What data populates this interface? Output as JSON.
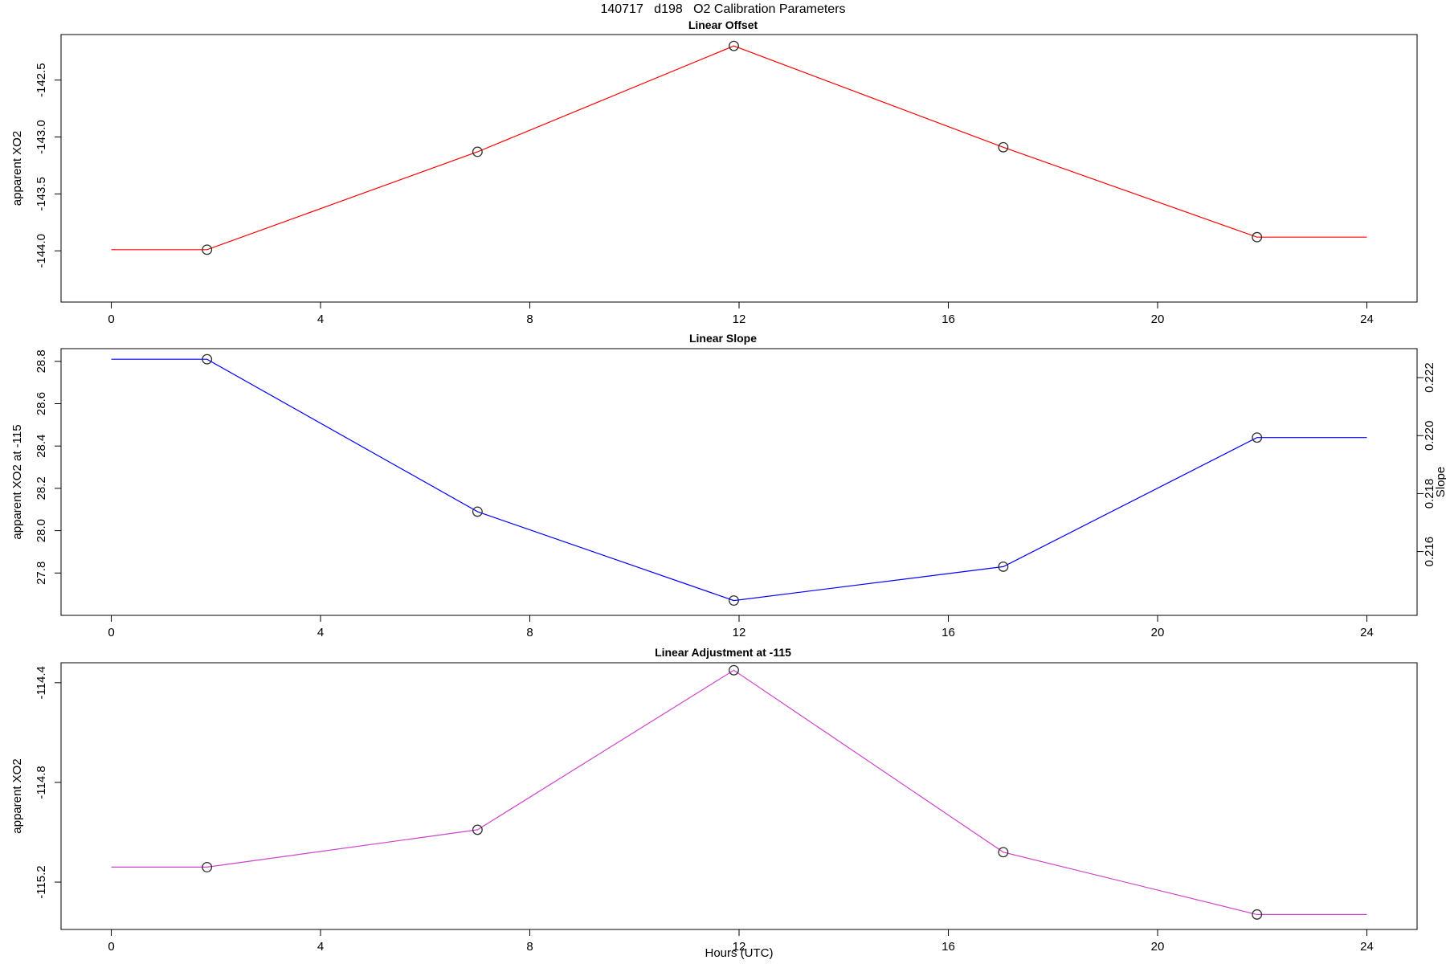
{
  "figure": {
    "main_title": "140717   d198   O2 Calibration Parameters",
    "xlabel": "Hours (UTC)",
    "background_color": "#ffffff",
    "text_color": "#000000"
  },
  "chart_data": [
    {
      "id": "linear-offset",
      "type": "line",
      "title": "Linear Offset",
      "ylabel": "apparent XO2",
      "color": "#FF0000",
      "marker": "open-circle",
      "marker_color": "#303030",
      "x": [
        1.83,
        7.0,
        11.9,
        17.05,
        21.9
      ],
      "y": [
        -143.99,
        -143.13,
        -142.2,
        -143.09,
        -143.88
      ],
      "line_extend_x": [
        0,
        24
      ],
      "xticks": {
        "values": [
          0,
          4,
          8,
          12,
          16,
          20,
          24
        ],
        "labels": [
          "0",
          "4",
          "8",
          "12",
          "16",
          "20",
          "24"
        ]
      },
      "yticks": {
        "values": [
          -142.5,
          -143.0,
          -143.5,
          -144.0
        ],
        "labels": [
          "-142.5",
          "-143.0",
          "-143.5",
          "-144.0"
        ]
      },
      "xlim": [
        -0.96,
        24.96
      ],
      "ylim": [
        -144.45,
        -142.1
      ],
      "grid": false,
      "legend": null
    },
    {
      "id": "linear-slope",
      "type": "line",
      "title": "Linear Slope",
      "ylabel": "apparent XO2 at -115",
      "ylabel_right": "Slope",
      "color": "#0000FF",
      "marker": "open-circle",
      "marker_color": "#303030",
      "x": [
        1.83,
        7.0,
        11.9,
        17.05,
        21.9
      ],
      "y": [
        28.81,
        28.09,
        27.67,
        27.83,
        28.44
      ],
      "line_extend_x": [
        0,
        24
      ],
      "xticks": {
        "values": [
          0,
          4,
          8,
          12,
          16,
          20,
          24
        ],
        "labels": [
          "0",
          "4",
          "8",
          "12",
          "16",
          "20",
          "24"
        ]
      },
      "yticks": {
        "values": [
          28.8,
          28.6,
          28.4,
          28.2,
          28.0,
          27.8
        ],
        "labels": [
          "28.8",
          "28.6",
          "28.4",
          "28.2",
          "28.0",
          "27.8"
        ]
      },
      "yticks_right": {
        "values": [
          0.222,
          0.22,
          0.218,
          0.216
        ],
        "labels": [
          "0.222",
          "0.220",
          "0.218",
          "0.216"
        ]
      },
      "xlim": [
        -0.96,
        24.96
      ],
      "ylim": [
        27.6,
        28.86
      ],
      "ylim_right": [
        0.2138,
        0.223
      ],
      "grid": false,
      "legend": null
    },
    {
      "id": "linear-adjustment",
      "type": "line",
      "title": "Linear Adjustment at -115",
      "ylabel": "apparent XO2",
      "color": "#CC44CC",
      "marker": "open-circle",
      "marker_color": "#303030",
      "x": [
        1.83,
        7.0,
        11.9,
        17.05,
        21.9
      ],
      "y": [
        -115.14,
        -114.99,
        -114.35,
        -115.08,
        -115.33
      ],
      "line_extend_x": [
        0,
        24
      ],
      "xticks": {
        "values": [
          0,
          4,
          8,
          12,
          16,
          20,
          24
        ],
        "labels": [
          "0",
          "4",
          "8",
          "12",
          "16",
          "20",
          "24"
        ]
      },
      "yticks": {
        "values": [
          -114.4,
          -114.8,
          -115.2
        ],
        "labels": [
          "-114.4",
          "-114.8",
          "-115.2"
        ]
      },
      "xlim": [
        -0.96,
        24.96
      ],
      "ylim": [
        -115.39,
        -114.32
      ],
      "grid": false,
      "legend": null
    }
  ]
}
